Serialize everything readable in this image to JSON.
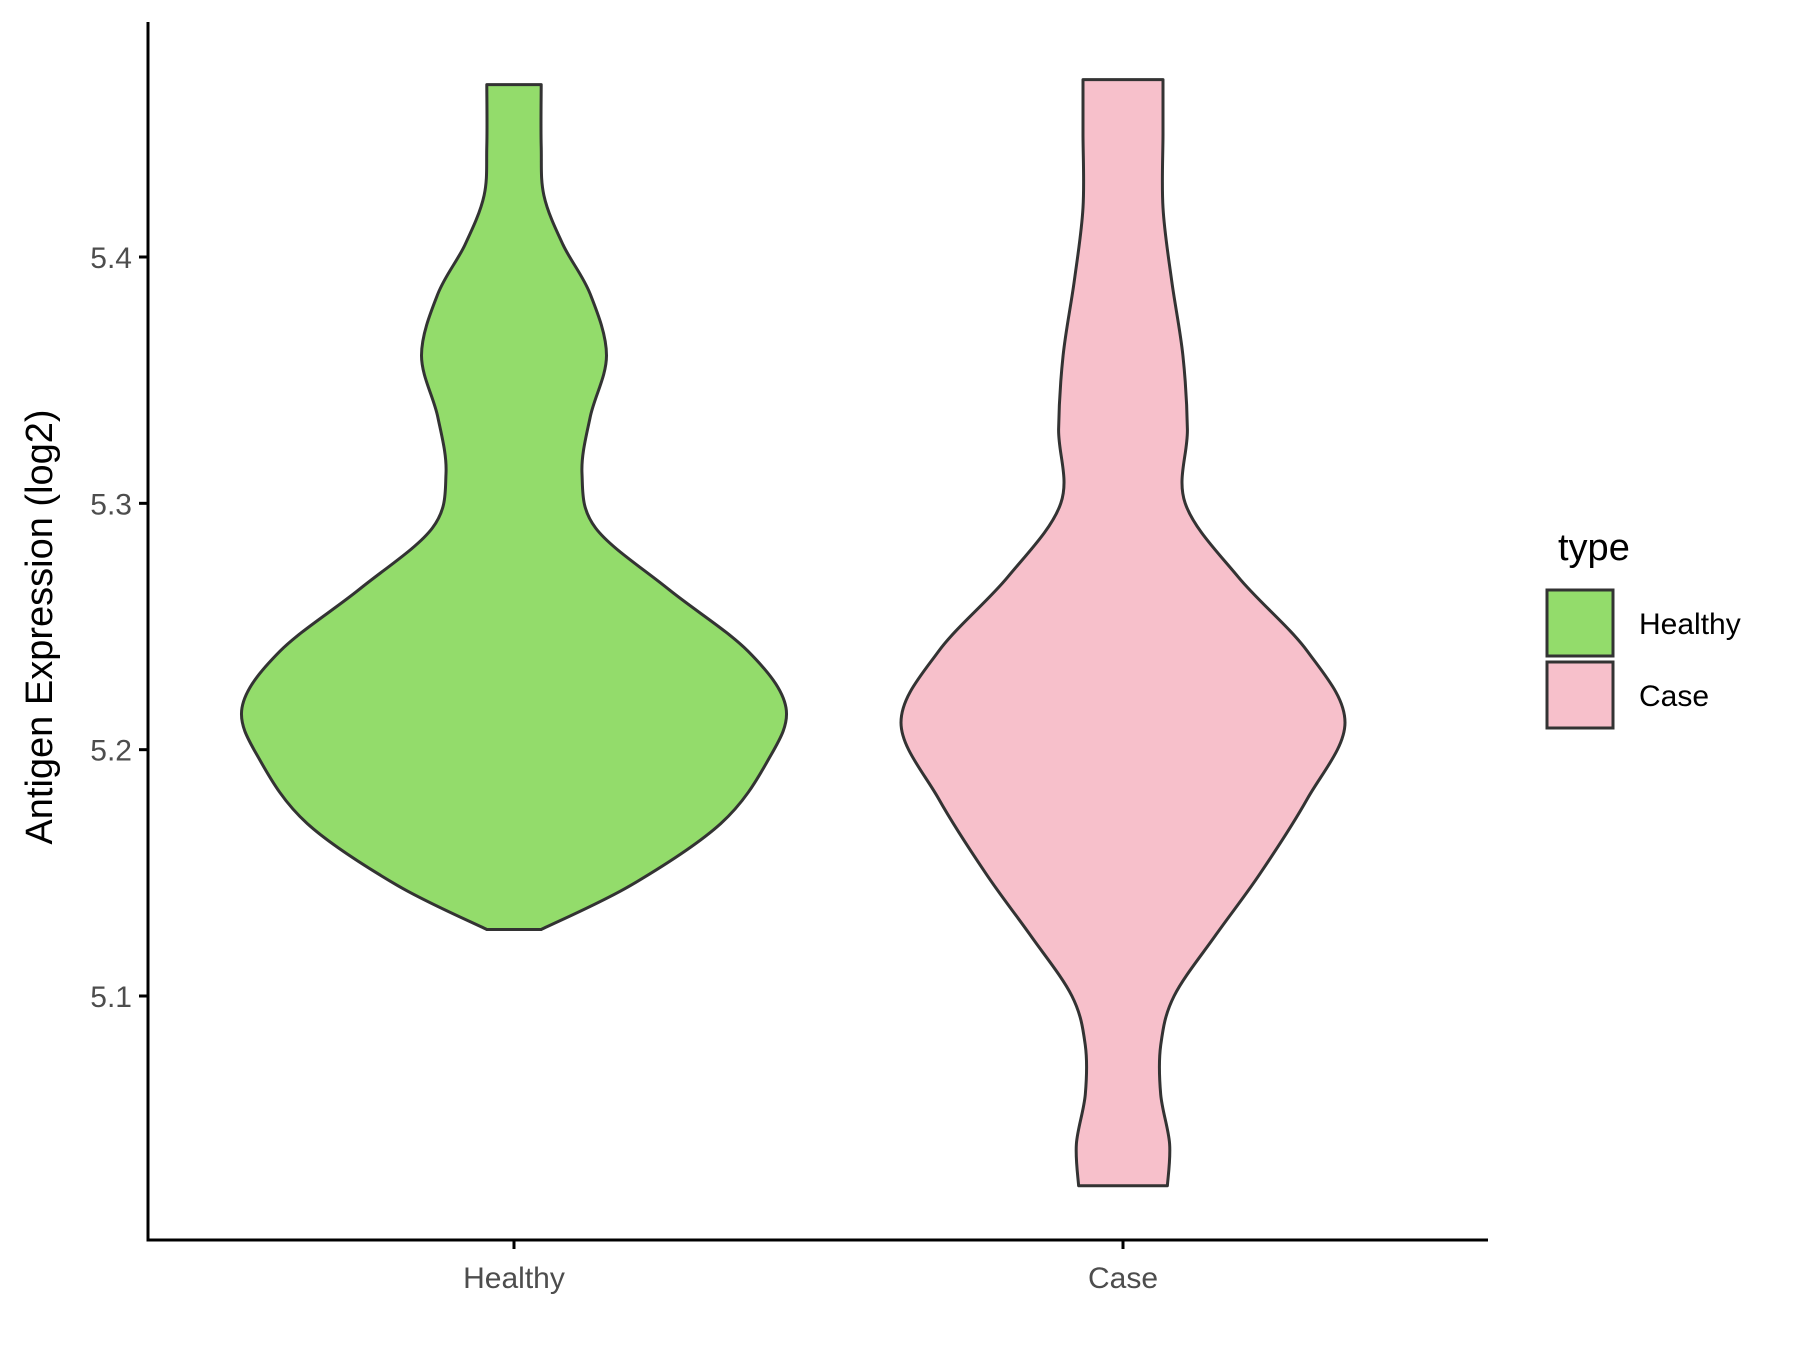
{
  "chart_data": {
    "type": "violin",
    "title": "",
    "xlabel": "",
    "ylabel": "Antigen Expression (log2)",
    "ylim": [
      5.0,
      5.5
    ],
    "yticks": [
      "5.1",
      "5.2",
      "5.3",
      "5.4"
    ],
    "grid": false,
    "legend": {
      "title": "type",
      "placement": "right",
      "entries": [
        {
          "label": "Healthy",
          "color": "#93dc6b"
        },
        {
          "label": "Case",
          "color": "#f7c0cb"
        }
      ]
    },
    "categories": [
      "Healthy",
      "Case"
    ],
    "series": [
      {
        "name": "Healthy",
        "color": "#93dc6b",
        "min": 5.127,
        "max": 5.47,
        "density": [
          [
            5.127,
            0.1
          ],
          [
            5.145,
            0.43
          ],
          [
            5.17,
            0.76
          ],
          [
            5.195,
            0.93
          ],
          [
            5.217,
            1.0
          ],
          [
            5.24,
            0.86
          ],
          [
            5.265,
            0.57
          ],
          [
            5.29,
            0.3
          ],
          [
            5.312,
            0.25
          ],
          [
            5.335,
            0.28
          ],
          [
            5.36,
            0.34
          ],
          [
            5.385,
            0.28
          ],
          [
            5.405,
            0.18
          ],
          [
            5.425,
            0.11
          ],
          [
            5.445,
            0.1
          ],
          [
            5.47,
            0.1
          ]
        ]
      },
      {
        "name": "Case",
        "color": "#f7c0cb",
        "min": 5.023,
        "max": 5.472,
        "density": [
          [
            5.023,
            0.2
          ],
          [
            5.04,
            0.21
          ],
          [
            5.06,
            0.17
          ],
          [
            5.08,
            0.17
          ],
          [
            5.1,
            0.23
          ],
          [
            5.125,
            0.42
          ],
          [
            5.15,
            0.62
          ],
          [
            5.18,
            0.83
          ],
          [
            5.211,
            1.0
          ],
          [
            5.24,
            0.83
          ],
          [
            5.27,
            0.52
          ],
          [
            5.3,
            0.28
          ],
          [
            5.33,
            0.29
          ],
          [
            5.36,
            0.27
          ],
          [
            5.39,
            0.22
          ],
          [
            5.42,
            0.18
          ],
          [
            5.45,
            0.18
          ],
          [
            5.472,
            0.18
          ]
        ]
      }
    ]
  }
}
